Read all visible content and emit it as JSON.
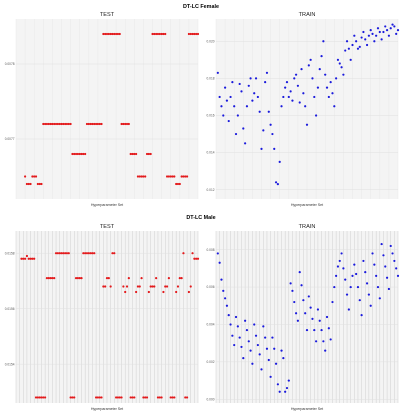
{
  "figure": {
    "top_title": "DT-LC Female",
    "bottom_title": "DT-LC Male"
  },
  "colors": {
    "test": "#e31a1c",
    "train": "#1a1adc",
    "grid": "#e8e8e8",
    "panel_bg": "#f4f4f4"
  },
  "chart_data": [
    {
      "type": "scatter",
      "title": "TEST",
      "group": "DT-LC Female",
      "xlabel": "Hyperparameter Set",
      "ylabel": "",
      "yticks": [
        "0.0078",
        "0.0077"
      ],
      "xlim": [
        0,
        100
      ],
      "ylim": [
        0.00762,
        0.00786
      ],
      "x": [
        5,
        6,
        7,
        8,
        9,
        10,
        11,
        12,
        13,
        14,
        15,
        16,
        17,
        18,
        19,
        20,
        21,
        22,
        23,
        24,
        25,
        26,
        27,
        28,
        29,
        30,
        31,
        32,
        33,
        34,
        35,
        36,
        37,
        38,
        39,
        40,
        41,
        42,
        43,
        44,
        45,
        46,
        47,
        48,
        49,
        50,
        51,
        52,
        53,
        54,
        55,
        56,
        57,
        58,
        59,
        60,
        61,
        62,
        63,
        64,
        65,
        66,
        67,
        68,
        69,
        70,
        71,
        72,
        73,
        74,
        75,
        76,
        77,
        78,
        79,
        80,
        81,
        82,
        83,
        84,
        85,
        86,
        87,
        88,
        89,
        90,
        91,
        92,
        93,
        94,
        95,
        96,
        97,
        98,
        99,
        100
      ],
      "y": [
        0.00765,
        0.00764,
        0.00764,
        0.00764,
        0.00765,
        0.00765,
        0.00765,
        0.00764,
        0.00764,
        0.00764,
        0.00772,
        0.00772,
        0.00772,
        0.00772,
        0.00772,
        0.00772,
        0.00772,
        0.00772,
        0.00772,
        0.00772,
        0.00772,
        0.00772,
        0.00772,
        0.00772,
        0.00772,
        0.00772,
        0.00768,
        0.00768,
        0.00768,
        0.00768,
        0.00768,
        0.00768,
        0.00768,
        0.00768,
        0.00772,
        0.00772,
        0.00772,
        0.00772,
        0.00772,
        0.00772,
        0.00772,
        0.00772,
        0.00772,
        0.00784,
        0.00784,
        0.00784,
        0.00784,
        0.00784,
        0.00784,
        0.00784,
        0.00784,
        0.00784,
        0.00784,
        0.00772,
        0.00772,
        0.00772,
        0.00772,
        0.00772,
        0.00768,
        0.00768,
        0.00768,
        0.00768,
        0.00765,
        0.00765,
        0.00765,
        0.00765,
        0.00765,
        0.00768,
        0.00768,
        0.00768,
        0.00784,
        0.00784,
        0.00784,
        0.00784,
        0.00784,
        0.00784,
        0.00784,
        0.00784,
        0.00765,
        0.00765,
        0.00765,
        0.00765,
        0.00765,
        0.00764,
        0.00764,
        0.00764,
        0.00765,
        0.00765,
        0.00765,
        0.00765,
        0.00784,
        0.00784,
        0.00784,
        0.00784,
        0.00784,
        0.00784
      ]
    },
    {
      "type": "scatter",
      "title": "TRAIN",
      "group": "DT-LC Female",
      "xlabel": "Hyperparameter Set",
      "ylabel": "",
      "yticks": [
        "0.020",
        "0.018",
        "0.016",
        "0.014",
        "0.012"
      ],
      "xlim": [
        0,
        100
      ],
      "ylim": [
        0.0115,
        0.0212
      ],
      "x": [
        1,
        2,
        3,
        4,
        5,
        6,
        7,
        8,
        9,
        10,
        11,
        12,
        13,
        14,
        15,
        16,
        17,
        18,
        19,
        20,
        21,
        22,
        23,
        24,
        25,
        26,
        27,
        28,
        29,
        30,
        31,
        32,
        33,
        34,
        35,
        36,
        37,
        38,
        39,
        40,
        41,
        42,
        43,
        44,
        45,
        46,
        47,
        48,
        49,
        50,
        51,
        52,
        53,
        54,
        55,
        56,
        57,
        58,
        59,
        60,
        61,
        62,
        63,
        64,
        65,
        66,
        67,
        68,
        69,
        70,
        71,
        72,
        73,
        74,
        75,
        76,
        77,
        78,
        79,
        80,
        81,
        82,
        83,
        84,
        85,
        86,
        87,
        88,
        89,
        90,
        91,
        92,
        93,
        94,
        95,
        96,
        97,
        98,
        99,
        100
      ],
      "y": [
        0.0183,
        0.017,
        0.0165,
        0.016,
        0.0175,
        0.0168,
        0.0157,
        0.017,
        0.0178,
        0.0165,
        0.015,
        0.016,
        0.0177,
        0.0173,
        0.0153,
        0.0145,
        0.0165,
        0.0176,
        0.018,
        0.0168,
        0.0172,
        0.018,
        0.017,
        0.0162,
        0.0142,
        0.0152,
        0.0178,
        0.0183,
        0.0162,
        0.0155,
        0.015,
        0.0142,
        0.0124,
        0.0123,
        0.0135,
        0.0165,
        0.017,
        0.0175,
        0.0178,
        0.017,
        0.0173,
        0.0168,
        0.018,
        0.0182,
        0.0176,
        0.0167,
        0.0185,
        0.0172,
        0.0165,
        0.0155,
        0.0187,
        0.019,
        0.018,
        0.017,
        0.016,
        0.0175,
        0.0185,
        0.0192,
        0.02,
        0.0182,
        0.0175,
        0.017,
        0.0178,
        0.0172,
        0.0165,
        0.018,
        0.019,
        0.0188,
        0.0186,
        0.0182,
        0.0195,
        0.02,
        0.0196,
        0.019,
        0.0198,
        0.0203,
        0.02,
        0.0196,
        0.0197,
        0.0202,
        0.0205,
        0.0201,
        0.0198,
        0.0203,
        0.0206,
        0.0204,
        0.02,
        0.0203,
        0.0207,
        0.0205,
        0.0201,
        0.0205,
        0.0208,
        0.0206,
        0.0203,
        0.0207,
        0.0209,
        0.0208,
        0.0204,
        0.0206
      ]
    },
    {
      "type": "scatter",
      "title": "TEST",
      "group": "DT-LC Male",
      "xlabel": "Hyperparameter Set",
      "ylabel": "",
      "yticks": [
        "0.0158",
        "0.0156",
        "0.0154"
      ],
      "xlim": [
        0,
        100
      ],
      "ylim": [
        0.01526,
        0.01588
      ],
      "x": [
        3,
        4,
        5,
        6,
        7,
        8,
        9,
        10,
        11,
        12,
        13,
        14,
        15,
        16,
        17,
        18,
        19,
        20,
        21,
        22,
        23,
        24,
        25,
        26,
        27,
        28,
        29,
        30,
        31,
        32,
        33,
        34,
        35,
        36,
        37,
        38,
        39,
        40,
        41,
        42,
        43,
        44,
        45,
        46,
        47,
        48,
        49,
        50,
        51,
        52,
        53,
        54,
        55,
        56,
        57,
        58,
        59,
        60,
        61,
        62,
        63,
        64,
        65,
        66,
        67,
        68,
        69,
        70,
        71,
        72,
        73,
        74,
        75,
        76,
        77,
        78,
        79,
        80,
        81,
        82,
        83,
        84,
        85,
        86,
        87,
        88,
        89,
        90,
        91,
        92,
        93,
        94,
        95,
        96,
        97,
        98,
        99,
        100
      ],
      "y": [
        0.01578,
        0.01578,
        0.01578,
        0.01579,
        0.01578,
        0.01578,
        0.01578,
        0.01578,
        0.01528,
        0.01528,
        0.01528,
        0.01528,
        0.01528,
        0.01528,
        0.01571,
        0.01571,
        0.01571,
        0.01571,
        0.01571,
        0.0158,
        0.0158,
        0.0158,
        0.0158,
        0.0158,
        0.0158,
        0.0158,
        0.0158,
        0.01528,
        0.01528,
        0.01528,
        0.01571,
        0.01571,
        0.01571,
        0.01571,
        0.0158,
        0.0158,
        0.0158,
        0.0158,
        0.0158,
        0.0158,
        0.0158,
        0.01528,
        0.01528,
        0.01528,
        0.01528,
        0.01568,
        0.01568,
        0.01571,
        0.01571,
        0.01568,
        0.0158,
        0.0158,
        0.01528,
        0.01528,
        0.01528,
        0.01528,
        0.01568,
        0.01566,
        0.01568,
        0.01571,
        0.01528,
        0.01528,
        0.01528,
        0.01566,
        0.01568,
        0.01568,
        0.01571,
        0.01528,
        0.01528,
        0.01528,
        0.01566,
        0.01568,
        0.01568,
        0.01568,
        0.01571,
        0.01528,
        0.01528,
        0.01528,
        0.01566,
        0.01568,
        0.01568,
        0.01571,
        0.01528,
        0.01528,
        0.01528,
        0.01566,
        0.01568,
        0.01571,
        0.01571,
        0.0158,
        0.01528,
        0.01528,
        0.01566,
        0.01568,
        0.0158,
        0.01578,
        0.01578,
        0.01578
      ]
    },
    {
      "type": "scatter",
      "title": "TRAIN",
      "group": "DT-LC Male",
      "xlabel": "Hyperparameter Set",
      "ylabel": "",
      "yticks": [
        "0.008",
        "0.006",
        "0.004",
        "0.002",
        "0.000"
      ],
      "xlim": [
        0,
        100
      ],
      "ylim": [
        -0.0002,
        0.009
      ],
      "x": [
        1,
        2,
        3,
        4,
        5,
        6,
        7,
        8,
        9,
        10,
        11,
        12,
        13,
        14,
        15,
        16,
        17,
        18,
        19,
        20,
        21,
        22,
        23,
        24,
        25,
        26,
        27,
        28,
        29,
        30,
        31,
        32,
        33,
        34,
        35,
        36,
        37,
        38,
        39,
        40,
        41,
        42,
        43,
        44,
        45,
        46,
        47,
        48,
        49,
        50,
        51,
        52,
        53,
        54,
        55,
        56,
        57,
        58,
        59,
        60,
        61,
        62,
        63,
        64,
        65,
        66,
        67,
        68,
        69,
        70,
        71,
        72,
        73,
        74,
        75,
        76,
        77,
        78,
        79,
        80,
        81,
        82,
        83,
        84,
        85,
        86,
        87,
        88,
        89,
        90,
        91,
        92,
        93,
        94,
        95,
        96,
        97,
        98,
        99,
        100
      ],
      "y": [
        0.0078,
        0.0073,
        0.0064,
        0.0058,
        0.0054,
        0.005,
        0.0045,
        0.004,
        0.0034,
        0.0029,
        0.0044,
        0.0039,
        0.0033,
        0.0028,
        0.0022,
        0.0042,
        0.0037,
        0.0031,
        0.0026,
        0.0019,
        0.004,
        0.0034,
        0.0029,
        0.0024,
        0.0016,
        0.0039,
        0.0033,
        0.0027,
        0.0021,
        0.0012,
        0.0033,
        0.0027,
        0.0019,
        0.0008,
        0.0004,
        0.0026,
        0.0022,
        0.0004,
        0.0006,
        0.001,
        0.0062,
        0.0058,
        0.0052,
        0.0046,
        0.0042,
        0.0068,
        0.0061,
        0.0053,
        0.0046,
        0.0037,
        0.0055,
        0.0049,
        0.0043,
        0.0037,
        0.0031,
        0.0048,
        0.0042,
        0.0037,
        0.0031,
        0.0026,
        0.0044,
        0.0038,
        0.0032,
        0.0052,
        0.006,
        0.0066,
        0.0071,
        0.0074,
        0.0078,
        0.007,
        0.0064,
        0.0056,
        0.0048,
        0.006,
        0.0066,
        0.0072,
        0.0067,
        0.006,
        0.0053,
        0.0045,
        0.0074,
        0.0068,
        0.0062,
        0.0056,
        0.005,
        0.0078,
        0.0072,
        0.0066,
        0.006,
        0.0054,
        0.0083,
        0.0077,
        0.0071,
        0.0065,
        0.0059,
        0.0082,
        0.0078,
        0.0074,
        0.007,
        0.0066
      ]
    }
  ]
}
